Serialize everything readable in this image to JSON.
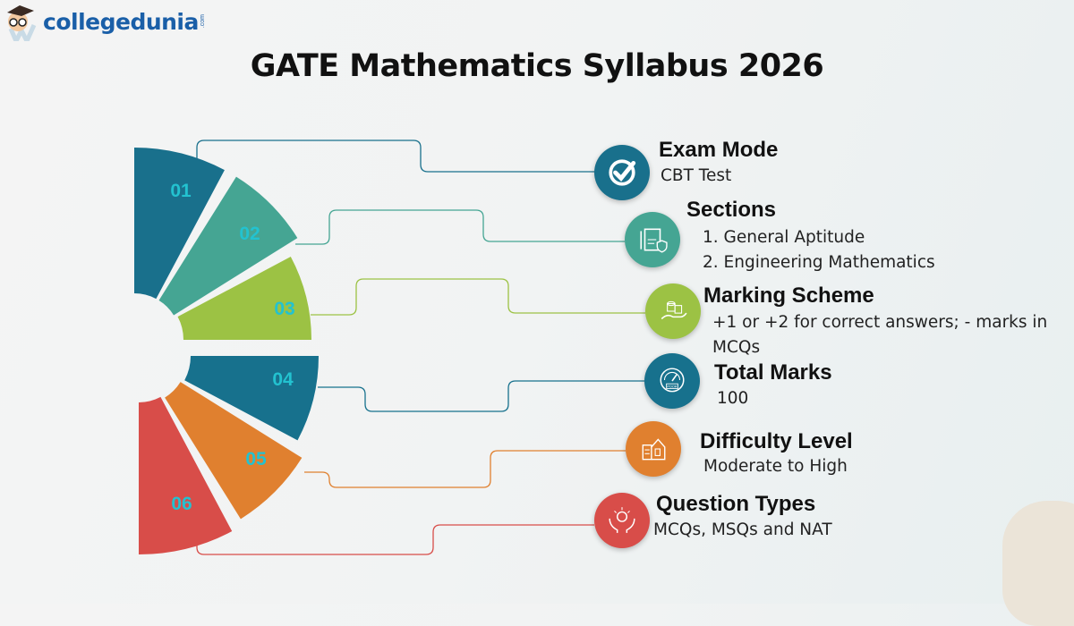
{
  "brand": {
    "name": "collegedunia",
    "suffix": ".com"
  },
  "title": "GATE Mathematics Syllabus 2026",
  "segments": [
    {
      "number": "01",
      "color": "#19708c"
    },
    {
      "number": "02",
      "color": "#45a593"
    },
    {
      "number": "03",
      "color": "#9cc244"
    },
    {
      "number": "04",
      "color": "#17718d"
    },
    {
      "number": "05",
      "color": "#e0802f"
    },
    {
      "number": "06",
      "color": "#d84d49"
    }
  ],
  "number_color": "#23c2d0",
  "items": [
    {
      "title": "Exam Mode",
      "lines": [
        "CBT Test"
      ],
      "icon": "check-circle-icon",
      "color": "#19708c"
    },
    {
      "title": "Sections",
      "lines": [
        "1. General Aptitude",
        "2. Engineering Mathematics"
      ],
      "icon": "legal-document-icon",
      "color": "#45a593"
    },
    {
      "title": "Marking Scheme",
      "lines": [
        "+1 or +2 for correct answers; - marks in",
        "MCQs"
      ],
      "icon": "coins-hand-icon",
      "color": "#9cc244"
    },
    {
      "title": "Total Marks",
      "lines": [
        "100"
      ],
      "icon": "gauge-icon",
      "icon_label": "POOR",
      "color": "#17718d"
    },
    {
      "title": "Difficulty Level",
      "lines": [
        "Moderate to High"
      ],
      "icon": "building-checklist-icon",
      "color": "#e0802f"
    },
    {
      "title": "Question Types",
      "lines": [
        "MCQs, MSQs and NAT"
      ],
      "icon": "idea-hands-icon",
      "color": "#d84d49"
    }
  ]
}
